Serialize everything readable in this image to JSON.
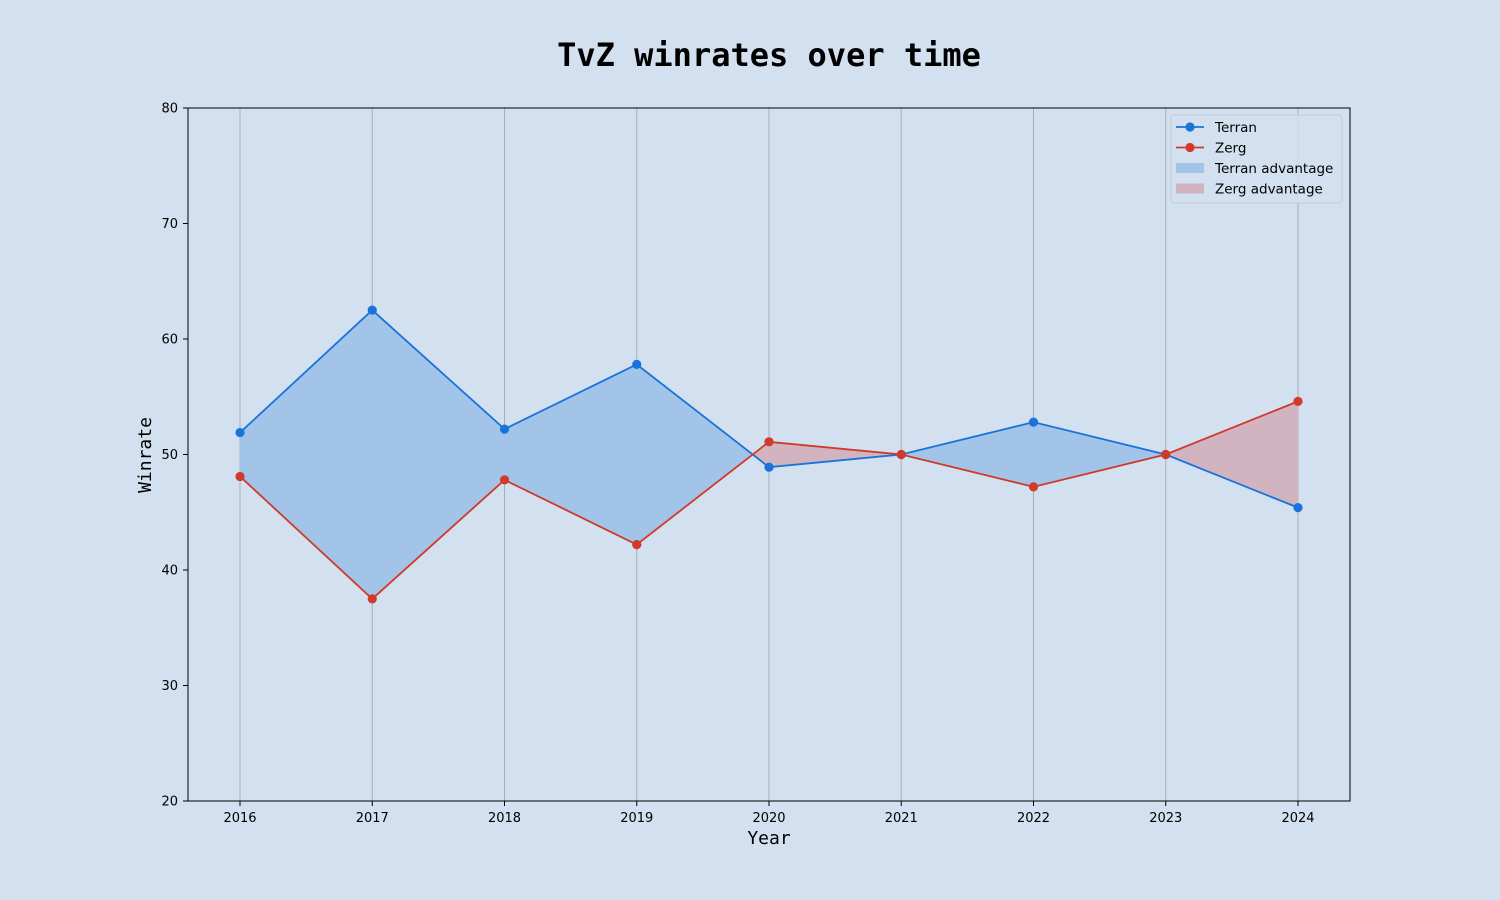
{
  "chart_data": {
    "type": "line",
    "title": "TvZ winrates over time",
    "xlabel": "Year",
    "ylabel": "Winrate",
    "x": [
      "2016",
      "2017",
      "2018",
      "2019",
      "2020",
      "2021",
      "2022",
      "2023",
      "2024"
    ],
    "series": [
      {
        "name": "Terran",
        "color": "#1a73d9",
        "values": [
          51.9,
          62.5,
          52.2,
          57.8,
          48.9,
          50.0,
          52.8,
          50.0,
          45.4
        ]
      },
      {
        "name": "Zerg",
        "color": "#d03a2a",
        "values": [
          48.1,
          37.5,
          47.8,
          42.2,
          51.1,
          50.0,
          47.2,
          50.0,
          54.6
        ]
      }
    ],
    "fills": [
      {
        "name": "Terran advantage",
        "color": "#a2c4e8"
      },
      {
        "name": "Zerg advantage",
        "color": "#d2b4c0"
      }
    ],
    "ylim": [
      20,
      80
    ],
    "yticks": [
      "20",
      "30",
      "40",
      "50",
      "60",
      "70",
      "80"
    ],
    "grid": "vertical",
    "legend_position": "top-right"
  }
}
